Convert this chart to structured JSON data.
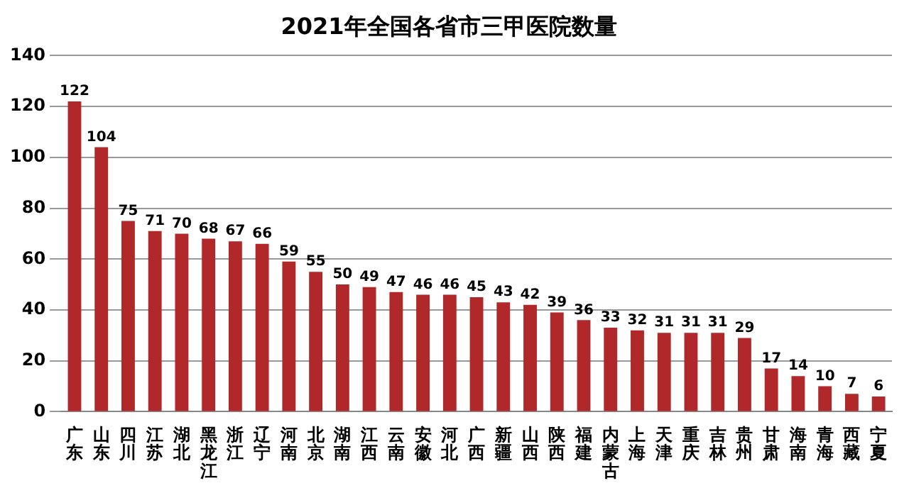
{
  "chart_data": {
    "type": "bar",
    "title": "2021年全国各省市三甲医院数量",
    "categories": [
      "广东",
      "山东",
      "四川",
      "江苏",
      "湖北",
      "黑龙江",
      "浙江",
      "辽宁",
      "河南",
      "北京",
      "湖南",
      "江西",
      "云南",
      "安徽",
      "河北",
      "广西",
      "新疆",
      "山西",
      "陕西",
      "福建",
      "内蒙古",
      "上海",
      "天津",
      "重庆",
      "吉林",
      "贵州",
      "甘肃",
      "海南",
      "青海",
      "西藏",
      "宁夏"
    ],
    "values": [
      122,
      104,
      75,
      71,
      70,
      68,
      67,
      66,
      59,
      55,
      50,
      49,
      47,
      46,
      46,
      45,
      43,
      42,
      39,
      36,
      33,
      32,
      31,
      31,
      31,
      29,
      17,
      14,
      10,
      7,
      6
    ],
    "color": "#b0282a",
    "ylim": [
      0,
      140
    ],
    "yticks": [
      0,
      20,
      40,
      60,
      80,
      100,
      120,
      140
    ],
    "grid": "y",
    "data_labels": true,
    "legend": false
  }
}
